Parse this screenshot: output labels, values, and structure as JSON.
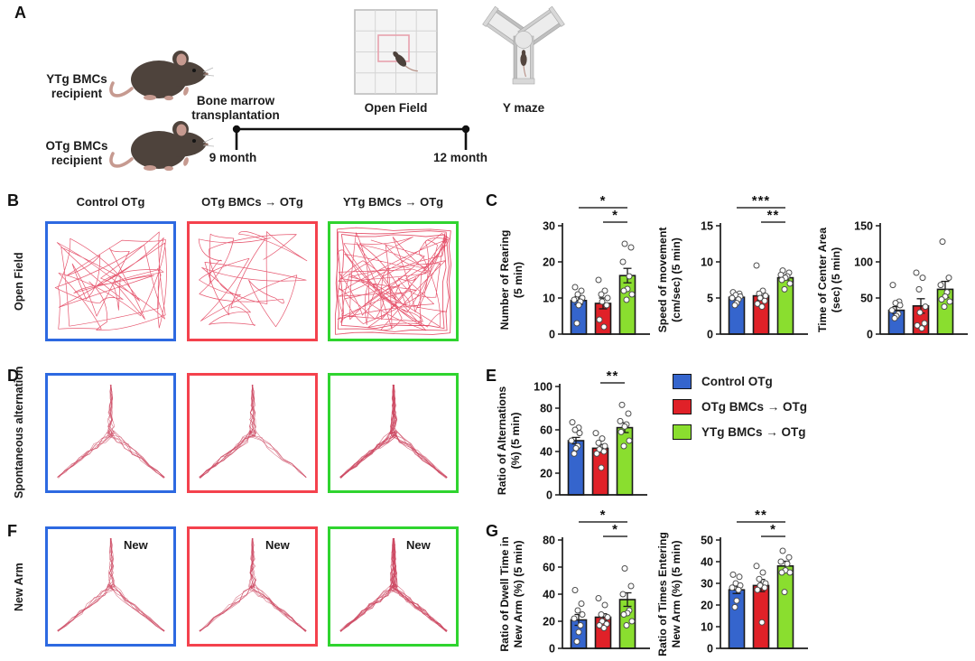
{
  "panels": {
    "a": "A",
    "b": "B",
    "c": "C",
    "d": "D",
    "e": "E",
    "f": "F",
    "g": "G"
  },
  "colors": {
    "bar_blue": "#3565cd",
    "bar_red": "#e02128",
    "bar_green": "#8ade2f",
    "box_blue": "#2d69e1",
    "box_red": "#f4424d",
    "box_green": "#2fd42f",
    "track_openfield": "#e23a56",
    "track_maze": "#cd4a63"
  },
  "panel_a": {
    "mouse_top_label_line1": "YTg BMCs",
    "mouse_top_label_line2": "recipient",
    "mouse_bottom_label_line1": "OTg BMCs",
    "mouse_bottom_label_line2": "recipient",
    "event_label_line1": "Bone marrow",
    "event_label_line2": "transplantation",
    "timeline_start": "9 month",
    "timeline_end": "12 month",
    "open_field_caption": "Open Field",
    "y_maze_caption": "Y maze"
  },
  "groups": [
    {
      "name": "Control OTg",
      "color": "#3565cd"
    },
    {
      "name": "OTg BMCs → OTg",
      "color": "#e02128"
    },
    {
      "name": "YTg BMCs → OTg",
      "color": "#8ade2f"
    }
  ],
  "panel_b": {
    "row_label": "Open Field",
    "columns": [
      "Control OTg",
      "OTg BMCs → OTg",
      "YTg BMCs → OTg"
    ]
  },
  "panel_d": {
    "row_label": "Spontaneous alternation"
  },
  "panel_f": {
    "row_label": "New Arm",
    "new_arm_label": "New"
  },
  "legend": {
    "items": [
      "Control OTg",
      "OTg BMCs → OTg",
      "YTg BMCs → OTg"
    ]
  },
  "chart_data": [
    {
      "id": "rearing",
      "type": "bar",
      "ylabel_lines": [
        "Number of Rearing",
        "(5 min)"
      ],
      "ylim": [
        0,
        30
      ],
      "yticks": [
        0,
        10,
        20,
        30
      ],
      "categories": [
        "Control OTg",
        "OTg BMCs → OTg",
        "YTg BMCs → OTg"
      ],
      "series": [
        {
          "name": "Control OTg",
          "mean": 9.3,
          "sem": 1.1,
          "points": [
            13,
            12,
            11,
            10,
            9.5,
            9,
            8,
            3
          ]
        },
        {
          "name": "OTg BMCs → OTg",
          "mean": 8.5,
          "sem": 1.5,
          "points": [
            15,
            12,
            11,
            10,
            9,
            8,
            4,
            2
          ]
        },
        {
          "name": "YTg BMCs → OTg",
          "mean": 16.2,
          "sem": 2.0,
          "points": [
            25,
            24,
            20,
            16,
            12.5,
            12,
            11,
            9.5
          ]
        }
      ],
      "sig": [
        {
          "from": 0,
          "to": 2,
          "label": "*",
          "row": 0
        },
        {
          "from": 1,
          "to": 2,
          "label": "*",
          "row": 1
        }
      ]
    },
    {
      "id": "speed",
      "type": "bar",
      "ylabel_lines": [
        "Speed of movement",
        "(cm/sec) (5 min)"
      ],
      "ylim": [
        0,
        15
      ],
      "yticks": [
        0,
        5,
        10,
        15
      ],
      "categories": [
        "Control OTg",
        "OTg BMCs → OTg",
        "YTg BMCs → OTg"
      ],
      "series": [
        {
          "name": "Control OTg",
          "mean": 5.1,
          "sem": 0.3,
          "points": [
            5.8,
            5.6,
            5.4,
            5.2,
            5.0,
            4.8,
            4.3,
            4.0
          ]
        },
        {
          "name": "OTg BMCs → OTg",
          "mean": 5.3,
          "sem": 0.6,
          "points": [
            9.5,
            6.0,
            5.6,
            5.3,
            5.0,
            4.6,
            4.2,
            3.8
          ]
        },
        {
          "name": "YTg BMCs → OTg",
          "mean": 7.8,
          "sem": 0.3,
          "points": [
            8.8,
            8.5,
            8.2,
            8.0,
            7.8,
            7.5,
            7.0,
            6.2
          ]
        }
      ],
      "sig": [
        {
          "from": 0,
          "to": 2,
          "label": "***",
          "row": 0
        },
        {
          "from": 1,
          "to": 2,
          "label": "**",
          "row": 1
        }
      ]
    },
    {
      "id": "center_area",
      "type": "bar",
      "ylabel_lines": [
        "Time of Center Area",
        "(sec) (5 min)"
      ],
      "ylim": [
        0,
        150
      ],
      "yticks": [
        0,
        50,
        100,
        150
      ],
      "categories": [
        "Control OTg",
        "OTg BMCs → OTg",
        "YTg BMCs → OTg"
      ],
      "series": [
        {
          "name": "Control OTg",
          "mean": 33,
          "sem": 5,
          "points": [
            68,
            45,
            43,
            40,
            33,
            28,
            25,
            22
          ]
        },
        {
          "name": "OTg BMCs → OTg",
          "mean": 39,
          "sem": 10,
          "points": [
            85,
            78,
            62,
            38,
            30,
            15,
            12,
            8
          ]
        },
        {
          "name": "YTg BMCs → OTg",
          "mean": 62,
          "sem": 11,
          "points": [
            128,
            78,
            68,
            58,
            52,
            48,
            45,
            38
          ]
        }
      ],
      "sig": []
    },
    {
      "id": "alternations",
      "type": "bar",
      "ylabel_lines": [
        "Ratio of Alternations",
        "(%) (5 min)"
      ],
      "ylim": [
        0,
        100
      ],
      "yticks": [
        0,
        20,
        40,
        60,
        80,
        100
      ],
      "categories": [
        "Control OTg",
        "OTg BMCs → OTg",
        "YTg BMCs → OTg"
      ],
      "series": [
        {
          "name": "Control OTg",
          "mean": 50,
          "sem": 3,
          "points": [
            67,
            62,
            60,
            57,
            50,
            45,
            43,
            38
          ]
        },
        {
          "name": "OTg BMCs → OTg",
          "mean": 43,
          "sem": 3.5,
          "points": [
            57,
            52,
            48,
            45,
            42,
            40,
            38,
            25
          ]
        },
        {
          "name": "YTg BMCs → OTg",
          "mean": 62,
          "sem": 4.5,
          "points": [
            83,
            75,
            68,
            65,
            63,
            58,
            50,
            45
          ]
        }
      ],
      "sig": [
        {
          "from": 1,
          "to": 2,
          "label": "**",
          "row": 1
        }
      ]
    },
    {
      "id": "dwell_time_new_arm",
      "type": "bar",
      "ylabel_lines": [
        "Ratio of Dwell Time in",
        "New Arm (%) (5 min)"
      ],
      "ylim": [
        0,
        80
      ],
      "yticks": [
        0,
        20,
        40,
        60,
        80
      ],
      "categories": [
        "Control OTg",
        "OTg BMCs → OTg",
        "YTg BMCs → OTg"
      ],
      "series": [
        {
          "name": "Control OTg",
          "mean": 21,
          "sem": 4,
          "points": [
            43,
            33,
            28,
            25,
            22,
            17,
            12,
            5
          ]
        },
        {
          "name": "OTg BMCs → OTg",
          "mean": 23,
          "sem": 2.5,
          "points": [
            37,
            32,
            25,
            23,
            20,
            18,
            17,
            15
          ]
        },
        {
          "name": "YTg BMCs → OTg",
          "mean": 36,
          "sem": 5,
          "points": [
            59,
            46,
            40,
            28,
            26,
            25,
            20,
            17
          ]
        }
      ],
      "sig": [
        {
          "from": 0,
          "to": 2,
          "label": "*",
          "row": 0
        },
        {
          "from": 1,
          "to": 2,
          "label": "*",
          "row": 1
        }
      ]
    },
    {
      "id": "times_entering_new_arm",
      "type": "bar",
      "ylabel_lines": [
        "Ratio of Times Entering",
        "New Arm (%) (5 min)"
      ],
      "ylim": [
        0,
        50
      ],
      "yticks": [
        0,
        10,
        20,
        30,
        40,
        50
      ],
      "categories": [
        "Control OTg",
        "OTg BMCs → OTg",
        "YTg BMCs → OTg"
      ],
      "series": [
        {
          "name": "Control OTg",
          "mean": 27,
          "sem": 1.7,
          "points": [
            34,
            33,
            30,
            29,
            28,
            27,
            22,
            19
          ]
        },
        {
          "name": "OTg BMCs → OTg",
          "mean": 29,
          "sem": 2.8,
          "points": [
            38,
            35,
            32,
            30,
            29,
            28,
            27,
            12
          ]
        },
        {
          "name": "YTg BMCs → OTg",
          "mean": 38,
          "sem": 2.2,
          "points": [
            45,
            42,
            40,
            39,
            36,
            35,
            35,
            26
          ]
        }
      ],
      "sig": [
        {
          "from": 0,
          "to": 2,
          "label": "**",
          "row": 0
        },
        {
          "from": 1,
          "to": 2,
          "label": "*",
          "row": 1
        }
      ]
    }
  ]
}
